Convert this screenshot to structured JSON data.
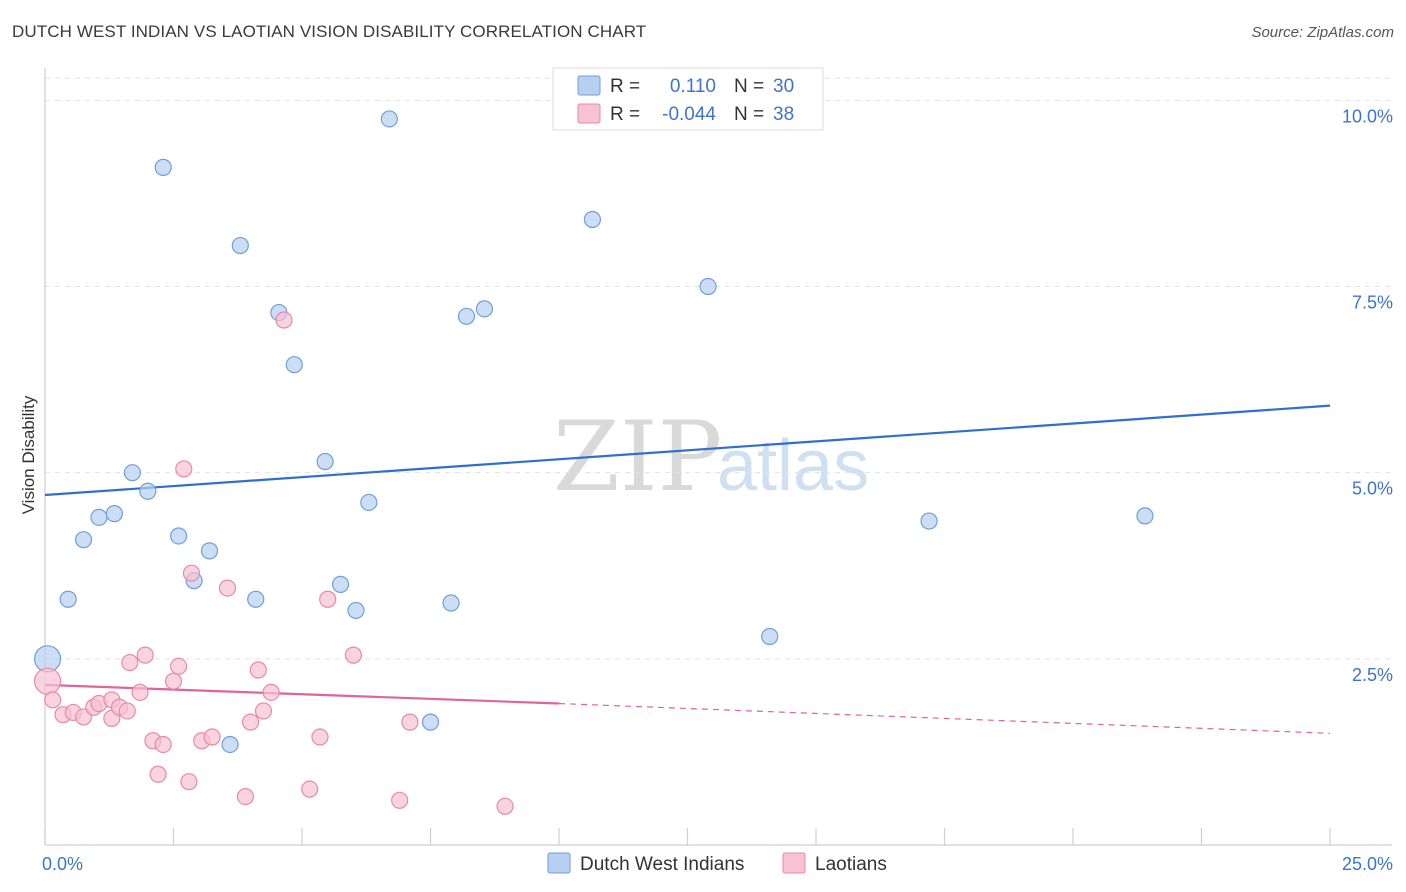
{
  "title": "DUTCH WEST INDIAN VS LAOTIAN VISION DISABILITY CORRELATION CHART",
  "source": "Source: ZipAtlas.com",
  "watermark": {
    "zip": "ZIP",
    "atlas": "atlas"
  },
  "colors": {
    "blue_fill": "#b7d0f1",
    "blue_stroke": "#6f9fd8",
    "blue_line": "#2f6fcf",
    "pink_fill": "#f7c2d3",
    "pink_stroke": "#e68aa8",
    "pink_line": "#e0649a",
    "grid": "#e2e2e2",
    "tick_label": "#3d74c9"
  },
  "legend": {
    "rows": [
      {
        "r_label": "R =",
        "r_value": "0.110",
        "n_label": "N =",
        "n_value": "30",
        "series": "blue"
      },
      {
        "r_label": "R =",
        "r_value": "-0.044",
        "n_label": "N =",
        "n_value": "38",
        "series": "pink"
      }
    ]
  },
  "bottom_legend": [
    "Dutch West Indians",
    "Laotians"
  ],
  "chart_data": {
    "type": "scatter",
    "title": "DUTCH WEST INDIAN VS LAOTIAN VISION DISABILITY CORRELATION CHART",
    "xlabel": "",
    "ylabel": "Vision Disability",
    "xlim": [
      0,
      25
    ],
    "ylim": [
      0,
      10.3
    ],
    "x_tick_labels": [
      "0.0%",
      "25.0%"
    ],
    "y_ticks": [
      2.5,
      5.0,
      7.5,
      10.0
    ],
    "y_tick_labels": [
      "2.5%",
      "5.0%",
      "7.5%",
      "10.0%"
    ],
    "grid": true,
    "legend_position": "top-center",
    "series": [
      {
        "name": "Dutch West Indians",
        "color": "blue",
        "points": [
          [
            0.05,
            2.5
          ],
          [
            0.45,
            3.3
          ],
          [
            0.75,
            4.1
          ],
          [
            1.05,
            4.4
          ],
          [
            1.35,
            4.45
          ],
          [
            1.7,
            5.0
          ],
          [
            2.0,
            4.75
          ],
          [
            2.3,
            9.1
          ],
          [
            2.6,
            4.15
          ],
          [
            2.9,
            3.55
          ],
          [
            3.2,
            3.95
          ],
          [
            3.8,
            8.05
          ],
          [
            4.1,
            3.3
          ],
          [
            4.55,
            7.15
          ],
          [
            4.85,
            6.45
          ],
          [
            5.45,
            5.15
          ],
          [
            5.75,
            3.5
          ],
          [
            6.05,
            3.15
          ],
          [
            6.3,
            4.6
          ],
          [
            6.7,
            9.75
          ],
          [
            7.5,
            1.65
          ],
          [
            7.9,
            3.25
          ],
          [
            8.2,
            7.1
          ],
          [
            8.55,
            7.2
          ],
          [
            10.65,
            8.4
          ],
          [
            12.9,
            7.5
          ],
          [
            14.1,
            2.8
          ],
          [
            17.2,
            4.35
          ],
          [
            21.4,
            4.42
          ],
          [
            3.6,
            1.35
          ]
        ],
        "trend": {
          "x0": 0,
          "y0": 4.7,
          "x1": 25,
          "y1": 5.9,
          "style": "solid"
        }
      },
      {
        "name": "Laotians",
        "color": "pink",
        "points": [
          [
            0.05,
            2.2
          ],
          [
            0.15,
            1.95
          ],
          [
            0.35,
            1.75
          ],
          [
            0.55,
            1.78
          ],
          [
            0.75,
            1.72
          ],
          [
            0.95,
            1.85
          ],
          [
            1.05,
            1.9
          ],
          [
            1.3,
            1.7
          ],
          [
            1.3,
            1.95
          ],
          [
            1.45,
            1.85
          ],
          [
            1.6,
            1.8
          ],
          [
            1.65,
            2.45
          ],
          [
            1.85,
            2.05
          ],
          [
            1.95,
            2.55
          ],
          [
            2.1,
            1.4
          ],
          [
            2.2,
            0.95
          ],
          [
            2.3,
            1.35
          ],
          [
            2.5,
            2.2
          ],
          [
            2.6,
            2.4
          ],
          [
            2.7,
            5.05
          ],
          [
            2.8,
            0.85
          ],
          [
            2.85,
            3.65
          ],
          [
            3.05,
            1.4
          ],
          [
            3.25,
            1.45
          ],
          [
            3.55,
            3.45
          ],
          [
            3.9,
            0.65
          ],
          [
            4.0,
            1.65
          ],
          [
            4.15,
            2.35
          ],
          [
            4.25,
            1.8
          ],
          [
            4.4,
            2.05
          ],
          [
            4.65,
            7.05
          ],
          [
            5.15,
            0.75
          ],
          [
            5.35,
            1.45
          ],
          [
            5.5,
            3.3
          ],
          [
            6.0,
            2.55
          ],
          [
            6.9,
            0.6
          ],
          [
            7.1,
            1.65
          ],
          [
            8.95,
            0.52
          ]
        ],
        "trend": {
          "x0": 0,
          "y0": 2.15,
          "x1": 10.0,
          "y1": 1.9,
          "style": "solid",
          "extend_to": 25,
          "extend_y": 1.5,
          "extend_style": "dashed"
        }
      }
    ]
  }
}
